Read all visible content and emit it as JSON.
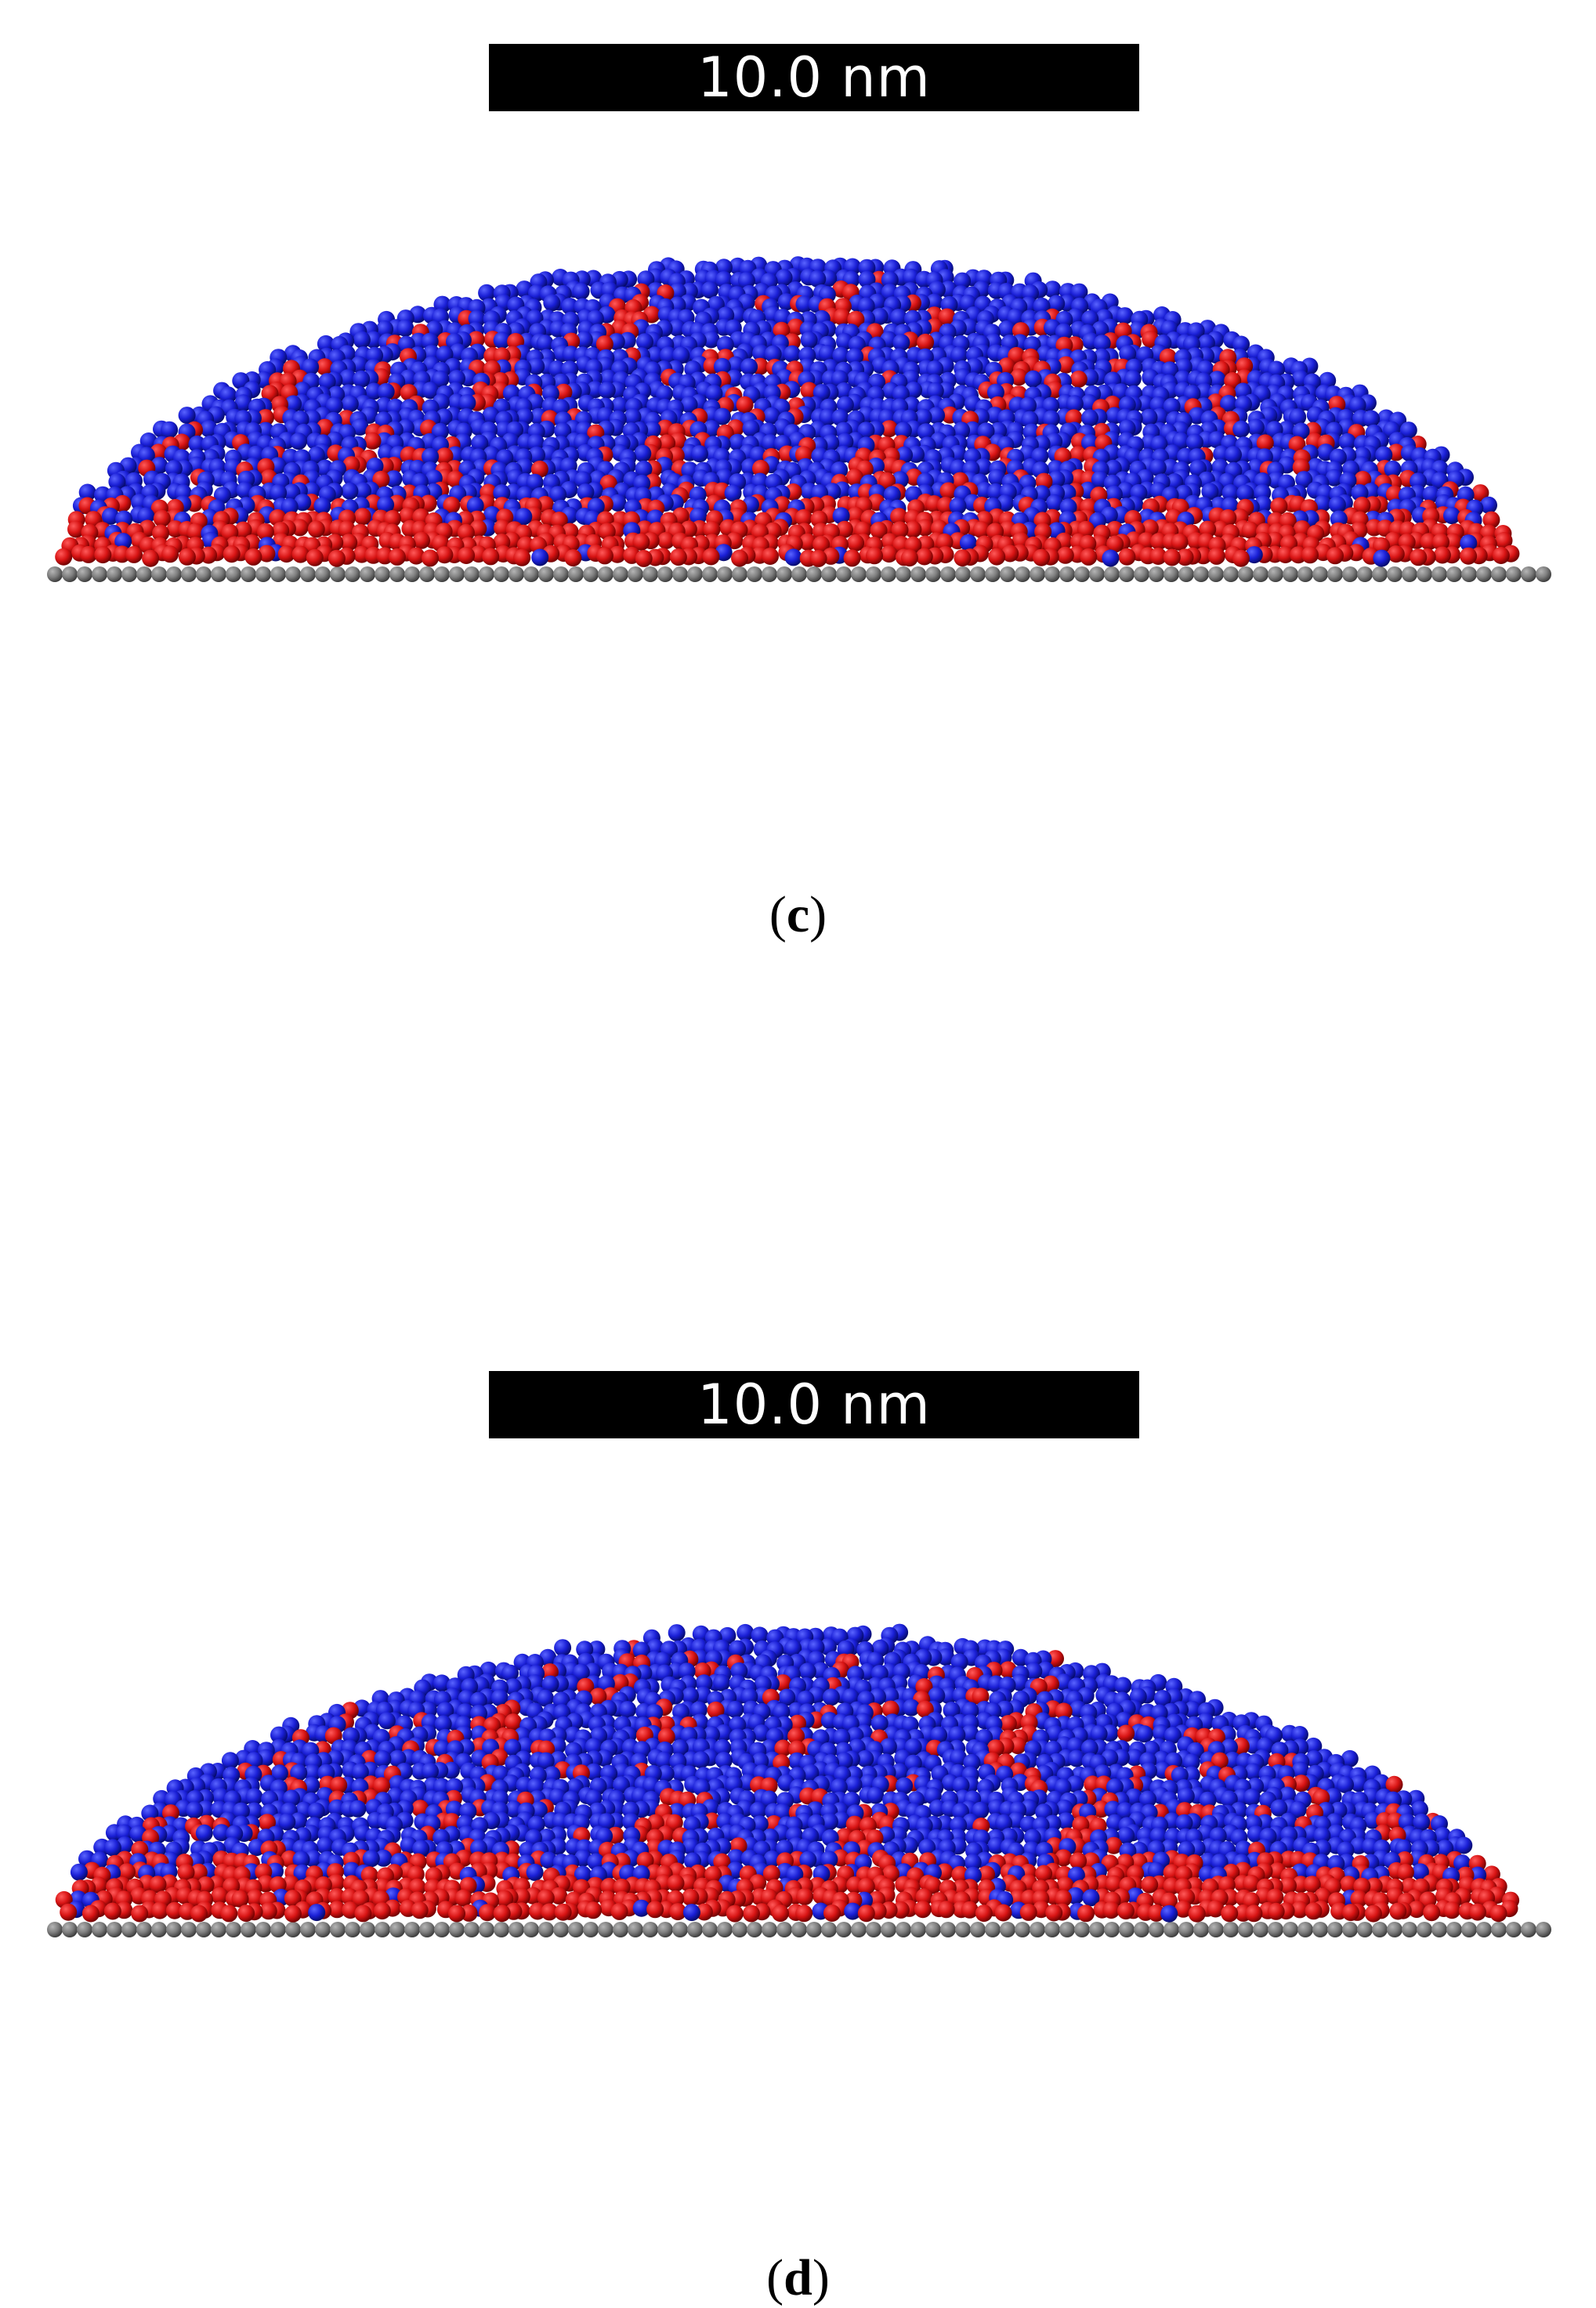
{
  "panels": [
    {
      "id": "c",
      "scale_bar_label": "10.0 nm",
      "caption_letter": "c",
      "colors": {
        "top_phase": "#1a1fd6",
        "bottom_phase": "#d81414",
        "substrate": "#7d7d7d"
      },
      "seed": 11,
      "shape": "rounded",
      "icons": [
        "red-particle-icon",
        "blue-particle-icon",
        "substrate-atom-icon"
      ]
    },
    {
      "id": "d",
      "scale_bar_label": "10.0 nm",
      "caption_letter": "d",
      "colors": {
        "top_phase": "#1a1fd6",
        "bottom_phase": "#d81414",
        "substrate": "#7d7d7d"
      },
      "seed": 29,
      "shape": "flat",
      "icons": [
        "red-particle-icon",
        "blue-particle-icon",
        "substrate-atom-icon"
      ]
    }
  ]
}
